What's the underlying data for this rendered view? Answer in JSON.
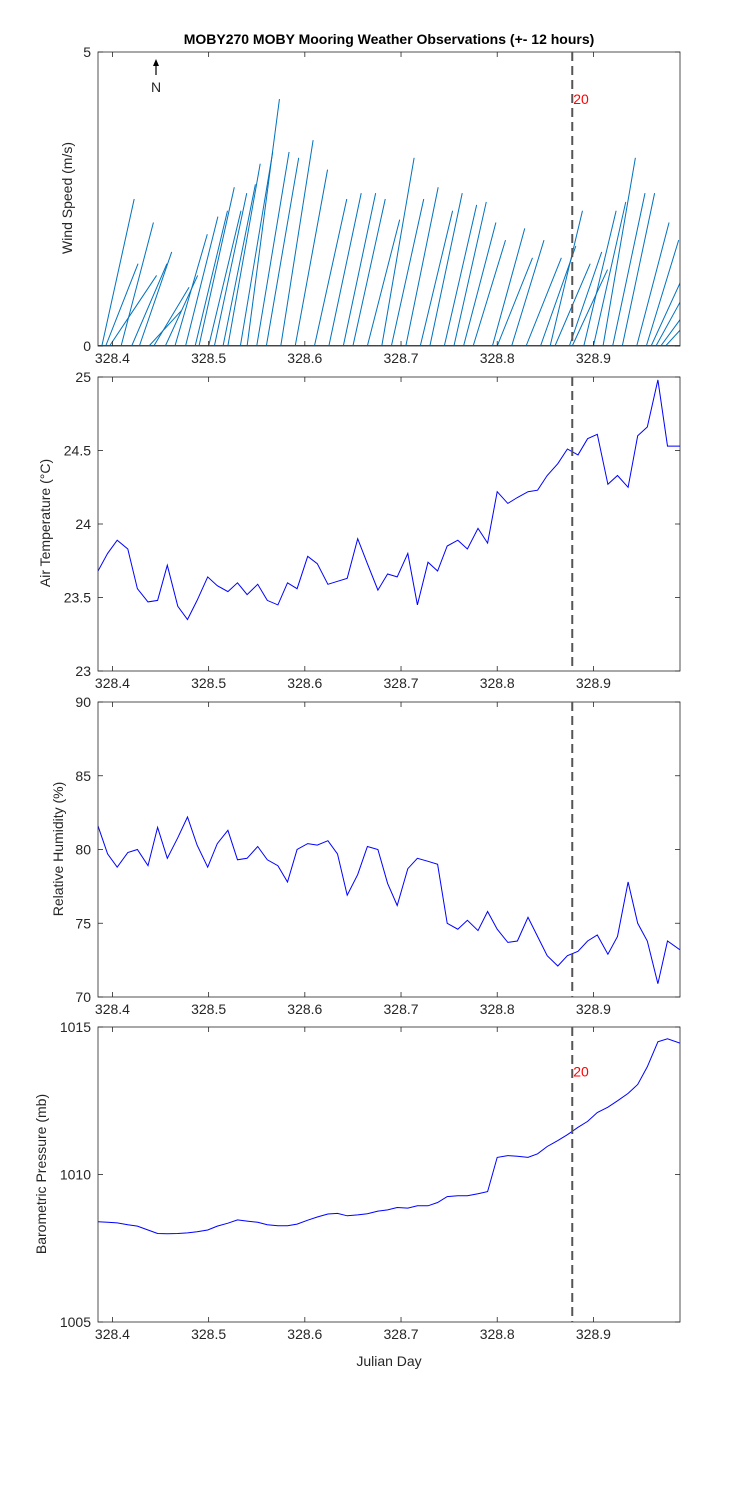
{
  "title": "MOBY270 MOBY Mooring Weather Observations (+- 12 hours)",
  "north_label": "N",
  "marker_label": "20",
  "colors": {
    "line": "#0000ff",
    "wind": "#0072bd",
    "marker": "#555555",
    "marker_text": "#ff0000",
    "axis": "#262626"
  },
  "chart_data": [
    {
      "type": "vector",
      "ylabel": "Wind Speed (m/s)",
      "xlabel": "",
      "xlim": [
        328.385,
        328.99
      ],
      "ylim": [
        0,
        5
      ],
      "yticks": [
        0,
        5
      ],
      "xticks": [
        328.4,
        328.5,
        328.6,
        328.7,
        328.8,
        328.9
      ],
      "xticklabels": [
        "328.4",
        "328.5",
        "328.6",
        "328.7",
        "328.8",
        "328.9"
      ],
      "vertical_marker": 328.878,
      "marker_text_at_y": 4.2,
      "vectors": [
        {
          "x": 328.389,
          "u": 0.55,
          "v": 2.5
        },
        {
          "x": 328.393,
          "u": 0.55,
          "v": 1.4
        },
        {
          "x": 328.397,
          "u": 0.8,
          "v": 1.2
        },
        {
          "x": 328.409,
          "u": 0.55,
          "v": 2.1
        },
        {
          "x": 328.42,
          "u": 0.6,
          "v": 1.4
        },
        {
          "x": 328.428,
          "u": 0.55,
          "v": 1.6
        },
        {
          "x": 328.438,
          "u": 0.55,
          "v": 0.6
        },
        {
          "x": 328.443,
          "u": 0.6,
          "v": 1.0
        },
        {
          "x": 328.455,
          "u": 0.55,
          "v": 1.2
        },
        {
          "x": 328.465,
          "u": 0.55,
          "v": 1.9
        },
        {
          "x": 328.476,
          "u": 0.55,
          "v": 2.2
        },
        {
          "x": 328.486,
          "u": 0.55,
          "v": 2.3
        },
        {
          "x": 328.49,
          "u": 0.6,
          "v": 2.7
        },
        {
          "x": 328.5,
          "u": 0.55,
          "v": 2.3
        },
        {
          "x": 328.506,
          "u": 0.55,
          "v": 2.6
        },
        {
          "x": 328.515,
          "u": 0.55,
          "v": 2.75
        },
        {
          "x": 328.52,
          "u": 0.55,
          "v": 3.1
        },
        {
          "x": 328.533,
          "u": 0.55,
          "v": 3.3
        },
        {
          "x": 328.54,
          "u": 0.55,
          "v": 4.2
        },
        {
          "x": 328.55,
          "u": 0.55,
          "v": 3.3
        },
        {
          "x": 328.56,
          "u": 0.55,
          "v": 3.2
        },
        {
          "x": 328.575,
          "u": 0.55,
          "v": 3.5
        },
        {
          "x": 328.59,
          "u": 0.55,
          "v": 3.0
        },
        {
          "x": 328.61,
          "u": 0.55,
          "v": 2.5
        },
        {
          "x": 328.625,
          "u": 0.55,
          "v": 2.6
        },
        {
          "x": 328.64,
          "u": 0.55,
          "v": 2.6
        },
        {
          "x": 328.65,
          "u": 0.55,
          "v": 2.5
        },
        {
          "x": 328.665,
          "u": 0.55,
          "v": 2.15
        },
        {
          "x": 328.68,
          "u": 0.55,
          "v": 3.2
        },
        {
          "x": 328.69,
          "u": 0.55,
          "v": 2.5
        },
        {
          "x": 328.705,
          "u": 0.55,
          "v": 2.7
        },
        {
          "x": 328.72,
          "u": 0.55,
          "v": 2.3
        },
        {
          "x": 328.73,
          "u": 0.55,
          "v": 2.6
        },
        {
          "x": 328.745,
          "u": 0.55,
          "v": 2.4
        },
        {
          "x": 328.755,
          "u": 0.55,
          "v": 2.45
        },
        {
          "x": 328.765,
          "u": 0.55,
          "v": 2.1
        },
        {
          "x": 328.775,
          "u": 0.55,
          "v": 1.8
        },
        {
          "x": 328.795,
          "u": 0.55,
          "v": 2.0
        },
        {
          "x": 328.8,
          "u": 0.6,
          "v": 1.5
        },
        {
          "x": 328.815,
          "u": 0.55,
          "v": 1.8
        },
        {
          "x": 328.83,
          "u": 0.6,
          "v": 1.5
        },
        {
          "x": 328.845,
          "u": 0.6,
          "v": 1.7
        },
        {
          "x": 328.855,
          "u": 0.55,
          "v": 2.3
        },
        {
          "x": 328.86,
          "u": 0.6,
          "v": 1.4
        },
        {
          "x": 328.875,
          "u": 0.55,
          "v": 1.6
        },
        {
          "x": 328.878,
          "u": 0.6,
          "v": 1.3
        },
        {
          "x": 328.89,
          "u": 0.55,
          "v": 2.3
        },
        {
          "x": 328.9,
          "u": 0.55,
          "v": 2.45
        },
        {
          "x": 328.91,
          "u": 0.55,
          "v": 3.2
        },
        {
          "x": 328.92,
          "u": 0.55,
          "v": 2.6
        },
        {
          "x": 328.93,
          "u": 0.55,
          "v": 2.6
        },
        {
          "x": 328.945,
          "u": 0.55,
          "v": 2.1
        },
        {
          "x": 328.955,
          "u": 0.55,
          "v": 1.8
        },
        {
          "x": 328.96,
          "u": 0.55,
          "v": 1.2
        },
        {
          "x": 328.965,
          "u": 0.55,
          "v": 1.0
        },
        {
          "x": 328.97,
          "u": 0.55,
          "v": 0.75
        },
        {
          "x": 328.975,
          "u": 0.55,
          "v": 0.6
        }
      ]
    },
    {
      "type": "line",
      "ylabel": "Air Temperature (°C)",
      "xlabel": "",
      "xlim": [
        328.385,
        328.99
      ],
      "ylim": [
        23,
        25
      ],
      "yticks": [
        23,
        23.5,
        24,
        24.5,
        25
      ],
      "yticklabels": [
        "23",
        "23.5",
        "24",
        "24.5",
        "25"
      ],
      "xticks": [
        328.4,
        328.5,
        328.6,
        328.7,
        328.8,
        328.9
      ],
      "xticklabels": [
        "328.4",
        "328.5",
        "328.6",
        "328.7",
        "328.8",
        "328.9"
      ],
      "vertical_marker": 328.878,
      "x": [
        328.385,
        328.395,
        328.405,
        328.416,
        328.426,
        328.437,
        328.447,
        328.457,
        328.468,
        328.478,
        328.488,
        328.499,
        328.509,
        328.52,
        328.53,
        328.54,
        328.551,
        328.561,
        328.572,
        328.582,
        328.592,
        328.603,
        328.613,
        328.624,
        328.634,
        328.644,
        328.655,
        328.665,
        328.676,
        328.686,
        328.696,
        328.707,
        328.717,
        328.728,
        328.738,
        328.748,
        328.759,
        328.769,
        328.78,
        328.79,
        328.8,
        328.811,
        328.821,
        328.832,
        328.842,
        328.852,
        328.863,
        328.873,
        328.884,
        328.894,
        328.904,
        328.915,
        328.925,
        328.936,
        328.946,
        328.956,
        328.967,
        328.977,
        328.99
      ],
      "series": [
        {
          "values": [
            23.68,
            23.8,
            23.89,
            23.83,
            23.56,
            23.47,
            23.48,
            23.72,
            23.44,
            23.35,
            23.48,
            23.64,
            23.58,
            23.54,
            23.6,
            23.52,
            23.59,
            23.48,
            23.45,
            23.6,
            23.56,
            23.78,
            23.73,
            23.59,
            23.61,
            23.63,
            23.9,
            23.73,
            23.55,
            23.66,
            23.64,
            23.8,
            23.45,
            23.74,
            23.68,
            23.85,
            23.89,
            23.83,
            23.97,
            23.87,
            24.22,
            24.14,
            24.18,
            24.22,
            24.23,
            24.33,
            24.41,
            24.51,
            24.47,
            24.58,
            24.61,
            24.27,
            24.33,
            24.25,
            24.6,
            24.66,
            24.98,
            24.53,
            24.53
          ]
        }
      ]
    },
    {
      "type": "line",
      "ylabel": "Relative Humidity (%)",
      "xlabel": "",
      "xlim": [
        328.385,
        328.99
      ],
      "ylim": [
        70,
        90
      ],
      "yticks": [
        70,
        75,
        80,
        85,
        90
      ],
      "yticklabels": [
        "70",
        "75",
        "80",
        "85",
        "90"
      ],
      "xticks": [
        328.4,
        328.5,
        328.6,
        328.7,
        328.8,
        328.9
      ],
      "xticklabels": [
        "328.4",
        "328.5",
        "328.6",
        "328.7",
        "328.8",
        "328.9"
      ],
      "vertical_marker": 328.878,
      "x": [
        328.385,
        328.395,
        328.405,
        328.416,
        328.426,
        328.437,
        328.447,
        328.457,
        328.468,
        328.478,
        328.488,
        328.499,
        328.509,
        328.52,
        328.53,
        328.54,
        328.551,
        328.561,
        328.572,
        328.582,
        328.592,
        328.603,
        328.613,
        328.624,
        328.634,
        328.644,
        328.655,
        328.665,
        328.676,
        328.686,
        328.696,
        328.707,
        328.717,
        328.728,
        328.738,
        328.748,
        328.759,
        328.769,
        328.78,
        328.79,
        328.8,
        328.811,
        328.821,
        328.832,
        328.842,
        328.852,
        328.863,
        328.873,
        328.884,
        328.894,
        328.904,
        328.915,
        328.925,
        328.936,
        328.946,
        328.956,
        328.967,
        328.977,
        328.99
      ],
      "series": [
        {
          "values": [
            81.6,
            79.7,
            78.8,
            79.8,
            80.0,
            78.9,
            81.5,
            79.4,
            80.8,
            82.2,
            80.3,
            78.8,
            80.4,
            81.3,
            79.3,
            79.4,
            80.2,
            79.3,
            78.9,
            77.8,
            80.0,
            80.4,
            80.3,
            80.6,
            79.7,
            76.9,
            78.3,
            80.2,
            80.0,
            77.7,
            76.2,
            78.7,
            79.4,
            79.2,
            79.0,
            75.0,
            74.6,
            75.2,
            74.5,
            75.8,
            74.6,
            73.7,
            73.8,
            75.4,
            74.1,
            72.8,
            72.1,
            72.8,
            73.1,
            73.8,
            74.2,
            72.9,
            74.1,
            77.8,
            75.0,
            73.8,
            70.9,
            73.8,
            73.2
          ]
        }
      ]
    },
    {
      "type": "line",
      "ylabel": "Barometric Pressure (mb)",
      "xlabel": "Julian Day",
      "xlim": [
        328.385,
        328.99
      ],
      "ylim": [
        1005,
        1015
      ],
      "yticks": [
        1005,
        1010,
        1015
      ],
      "yticklabels": [
        "1005",
        "1010",
        "1015"
      ],
      "xticks": [
        328.4,
        328.5,
        328.6,
        328.7,
        328.8,
        328.9
      ],
      "xticklabels": [
        "328.4",
        "328.5",
        "328.6",
        "328.7",
        "328.8",
        "328.9"
      ],
      "vertical_marker": 328.878,
      "marker_text_at_y": 1013.5,
      "x": [
        328.385,
        328.395,
        328.405,
        328.416,
        328.426,
        328.437,
        328.447,
        328.457,
        328.468,
        328.478,
        328.488,
        328.499,
        328.509,
        328.52,
        328.53,
        328.54,
        328.551,
        328.561,
        328.572,
        328.582,
        328.592,
        328.603,
        328.613,
        328.624,
        328.634,
        328.644,
        328.655,
        328.665,
        328.676,
        328.686,
        328.696,
        328.707,
        328.717,
        328.728,
        328.738,
        328.748,
        328.759,
        328.769,
        328.78,
        328.79,
        328.8,
        328.811,
        328.821,
        328.832,
        328.842,
        328.852,
        328.863,
        328.873,
        328.884,
        328.894,
        328.904,
        328.915,
        328.925,
        328.936,
        328.946,
        328.956,
        328.967,
        328.977,
        328.99
      ],
      "series": [
        {
          "values": [
            1008.4,
            1008.38,
            1008.36,
            1008.3,
            1008.25,
            1008.12,
            1008.0,
            1007.99,
            1008.0,
            1008.02,
            1008.06,
            1008.12,
            1008.25,
            1008.35,
            1008.46,
            1008.42,
            1008.38,
            1008.3,
            1008.26,
            1008.26,
            1008.32,
            1008.45,
            1008.56,
            1008.66,
            1008.68,
            1008.6,
            1008.63,
            1008.67,
            1008.76,
            1008.8,
            1008.88,
            1008.86,
            1008.94,
            1008.94,
            1009.05,
            1009.25,
            1009.28,
            1009.28,
            1009.35,
            1009.42,
            1010.58,
            1010.64,
            1010.62,
            1010.58,
            1010.7,
            1010.95,
            1011.15,
            1011.35,
            1011.6,
            1011.8,
            1012.1,
            1012.28,
            1012.5,
            1012.75,
            1013.05,
            1013.65,
            1014.5,
            1014.6,
            1014.45
          ]
        }
      ]
    }
  ]
}
